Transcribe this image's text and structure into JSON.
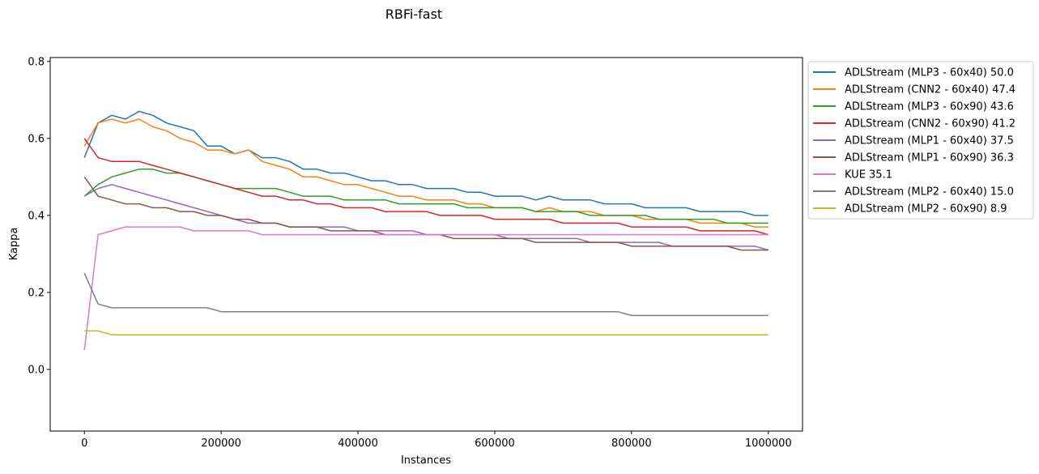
{
  "chart_data": {
    "type": "line",
    "title": "RBFi-fast",
    "xlabel": "Instances",
    "ylabel": "Kappa",
    "xlim": [
      -50000,
      1050000
    ],
    "ylim": [
      -0.16,
      0.81
    ],
    "x_ticks": [
      0,
      200000,
      400000,
      600000,
      800000,
      1000000
    ],
    "x_tick_labels": [
      "0",
      "200000",
      "400000",
      "600000",
      "800000",
      "1000000"
    ],
    "y_ticks": [
      0.0,
      0.2,
      0.4,
      0.6,
      0.8
    ],
    "y_tick_labels": [
      "0.0",
      "0.2",
      "0.4",
      "0.6",
      "0.8"
    ],
    "grid": false,
    "legend_position": "outside-right",
    "x": [
      0,
      20000,
      40000,
      60000,
      80000,
      100000,
      120000,
      140000,
      160000,
      180000,
      200000,
      220000,
      240000,
      260000,
      280000,
      300000,
      320000,
      340000,
      360000,
      380000,
      400000,
      420000,
      440000,
      460000,
      480000,
      500000,
      520000,
      540000,
      560000,
      580000,
      600000,
      620000,
      640000,
      660000,
      680000,
      700000,
      720000,
      740000,
      760000,
      780000,
      800000,
      820000,
      840000,
      860000,
      880000,
      900000,
      920000,
      940000,
      960000,
      980000,
      1000000
    ],
    "series": [
      {
        "name": "ADLStream (MLP3 - 60x40) 50.0",
        "color": "#1f77b4",
        "values": [
          0.55,
          0.64,
          0.66,
          0.65,
          0.67,
          0.66,
          0.64,
          0.63,
          0.62,
          0.58,
          0.58,
          0.56,
          0.57,
          0.55,
          0.55,
          0.54,
          0.52,
          0.52,
          0.51,
          0.51,
          0.5,
          0.49,
          0.49,
          0.48,
          0.48,
          0.47,
          0.47,
          0.47,
          0.46,
          0.46,
          0.45,
          0.45,
          0.45,
          0.44,
          0.45,
          0.44,
          0.44,
          0.44,
          0.43,
          0.43,
          0.43,
          0.42,
          0.42,
          0.42,
          0.42,
          0.41,
          0.41,
          0.41,
          0.41,
          0.4,
          0.4
        ]
      },
      {
        "name": "ADLStream (CNN2 - 60x40) 47.4",
        "color": "#ff7f0e",
        "values": [
          0.58,
          0.64,
          0.65,
          0.64,
          0.65,
          0.63,
          0.62,
          0.6,
          0.59,
          0.57,
          0.57,
          0.56,
          0.57,
          0.54,
          0.53,
          0.52,
          0.5,
          0.5,
          0.49,
          0.48,
          0.48,
          0.47,
          0.46,
          0.45,
          0.45,
          0.44,
          0.44,
          0.44,
          0.43,
          0.43,
          0.42,
          0.42,
          0.42,
          0.41,
          0.42,
          0.41,
          0.41,
          0.41,
          0.4,
          0.4,
          0.4,
          0.39,
          0.39,
          0.39,
          0.39,
          0.38,
          0.38,
          0.38,
          0.38,
          0.37,
          0.37
        ]
      },
      {
        "name": "ADLStream (MLP3 - 60x90) 43.6",
        "color": "#2ca02c",
        "values": [
          0.45,
          0.48,
          0.5,
          0.51,
          0.52,
          0.52,
          0.51,
          0.51,
          0.5,
          0.49,
          0.48,
          0.47,
          0.47,
          0.47,
          0.47,
          0.46,
          0.45,
          0.45,
          0.45,
          0.44,
          0.44,
          0.44,
          0.44,
          0.43,
          0.43,
          0.43,
          0.43,
          0.43,
          0.42,
          0.42,
          0.42,
          0.42,
          0.42,
          0.41,
          0.41,
          0.41,
          0.41,
          0.4,
          0.4,
          0.4,
          0.4,
          0.4,
          0.39,
          0.39,
          0.39,
          0.39,
          0.39,
          0.38,
          0.38,
          0.38,
          0.38
        ]
      },
      {
        "name": "ADLStream (CNN2 - 60x90) 41.2",
        "color": "#d62728",
        "values": [
          0.6,
          0.55,
          0.54,
          0.54,
          0.54,
          0.53,
          0.52,
          0.51,
          0.5,
          0.49,
          0.48,
          0.47,
          0.46,
          0.45,
          0.45,
          0.44,
          0.44,
          0.43,
          0.43,
          0.42,
          0.42,
          0.42,
          0.41,
          0.41,
          0.41,
          0.41,
          0.4,
          0.4,
          0.4,
          0.4,
          0.39,
          0.39,
          0.39,
          0.39,
          0.39,
          0.38,
          0.38,
          0.38,
          0.38,
          0.38,
          0.37,
          0.37,
          0.37,
          0.37,
          0.37,
          0.36,
          0.36,
          0.36,
          0.36,
          0.36,
          0.35
        ]
      },
      {
        "name": "ADLStream (MLP1 - 60x40) 37.5",
        "color": "#9467bd",
        "values": [
          0.45,
          0.47,
          0.48,
          0.47,
          0.46,
          0.45,
          0.44,
          0.43,
          0.42,
          0.41,
          0.4,
          0.39,
          0.38,
          0.38,
          0.38,
          0.37,
          0.37,
          0.37,
          0.37,
          0.37,
          0.36,
          0.36,
          0.36,
          0.36,
          0.36,
          0.35,
          0.35,
          0.35,
          0.35,
          0.35,
          0.35,
          0.34,
          0.34,
          0.34,
          0.34,
          0.34,
          0.34,
          0.33,
          0.33,
          0.33,
          0.33,
          0.33,
          0.33,
          0.32,
          0.32,
          0.32,
          0.32,
          0.32,
          0.32,
          0.32,
          0.31
        ]
      },
      {
        "name": "ADLStream (MLP1 - 60x90) 36.3",
        "color": "#8c564b",
        "values": [
          0.5,
          0.45,
          0.44,
          0.43,
          0.43,
          0.42,
          0.42,
          0.41,
          0.41,
          0.4,
          0.4,
          0.39,
          0.39,
          0.38,
          0.38,
          0.37,
          0.37,
          0.37,
          0.36,
          0.36,
          0.36,
          0.36,
          0.35,
          0.35,
          0.35,
          0.35,
          0.35,
          0.34,
          0.34,
          0.34,
          0.34,
          0.34,
          0.34,
          0.33,
          0.33,
          0.33,
          0.33,
          0.33,
          0.33,
          0.33,
          0.32,
          0.32,
          0.32,
          0.32,
          0.32,
          0.32,
          0.32,
          0.32,
          0.31,
          0.31,
          0.31
        ]
      },
      {
        "name": "KUE 35.1",
        "color": "#e377c2",
        "values": [
          0.05,
          0.35,
          0.36,
          0.37,
          0.37,
          0.37,
          0.37,
          0.37,
          0.36,
          0.36,
          0.36,
          0.36,
          0.36,
          0.35,
          0.35,
          0.35,
          0.35,
          0.35,
          0.35,
          0.35,
          0.35,
          0.35,
          0.35,
          0.35,
          0.35,
          0.35,
          0.35,
          0.35,
          0.35,
          0.35,
          0.35,
          0.35,
          0.35,
          0.35,
          0.35,
          0.35,
          0.35,
          0.35,
          0.35,
          0.35,
          0.35,
          0.35,
          0.35,
          0.35,
          0.35,
          0.35,
          0.35,
          0.35,
          0.35,
          0.35,
          0.35
        ]
      },
      {
        "name": "ADLStream (MLP2 - 60x40) 15.0",
        "color": "#7f7f7f",
        "values": [
          0.25,
          0.17,
          0.16,
          0.16,
          0.16,
          0.16,
          0.16,
          0.16,
          0.16,
          0.16,
          0.15,
          0.15,
          0.15,
          0.15,
          0.15,
          0.15,
          0.15,
          0.15,
          0.15,
          0.15,
          0.15,
          0.15,
          0.15,
          0.15,
          0.15,
          0.15,
          0.15,
          0.15,
          0.15,
          0.15,
          0.15,
          0.15,
          0.15,
          0.15,
          0.15,
          0.15,
          0.15,
          0.15,
          0.15,
          0.15,
          0.14,
          0.14,
          0.14,
          0.14,
          0.14,
          0.14,
          0.14,
          0.14,
          0.14,
          0.14,
          0.14
        ]
      },
      {
        "name": "ADLStream (MLP2 - 60x90) 8.9",
        "color": "#bcbd22",
        "values": [
          0.1,
          0.1,
          0.09,
          0.09,
          0.09,
          0.09,
          0.09,
          0.09,
          0.09,
          0.09,
          0.09,
          0.09,
          0.09,
          0.09,
          0.09,
          0.09,
          0.09,
          0.09,
          0.09,
          0.09,
          0.09,
          0.09,
          0.09,
          0.09,
          0.09,
          0.09,
          0.09,
          0.09,
          0.09,
          0.09,
          0.09,
          0.09,
          0.09,
          0.09,
          0.09,
          0.09,
          0.09,
          0.09,
          0.09,
          0.09,
          0.09,
          0.09,
          0.09,
          0.09,
          0.09,
          0.09,
          0.09,
          0.09,
          0.09,
          0.09,
          0.09
        ]
      }
    ]
  }
}
